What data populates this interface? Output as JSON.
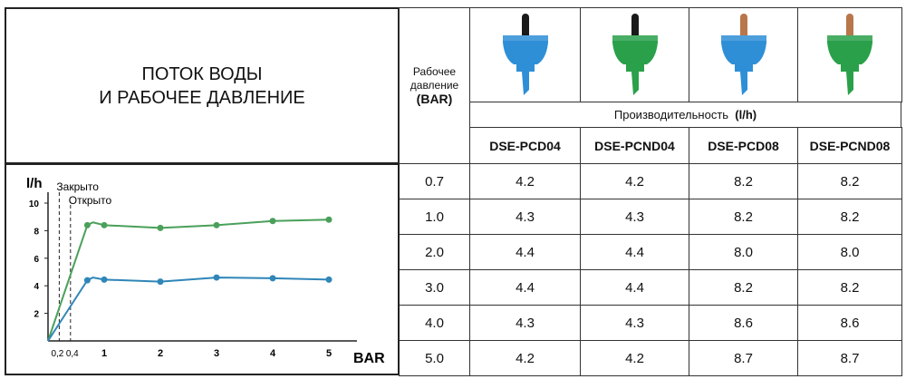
{
  "title_lines": [
    "ПОТОК ВОДЫ",
    "И РАБОЧЕЕ ДАВЛЕНИЕ"
  ],
  "pressure_header": {
    "line1": "Рабочее",
    "line2": "давление",
    "unit": "(BAR)"
  },
  "productivity_label": "Производительность",
  "productivity_unit": "(l/h)",
  "models": [
    {
      "name": "DSE-PCD04",
      "body_color": "#2e8fd6",
      "stem_color": "#1a1a1a"
    },
    {
      "name": "DSE-PCND04",
      "body_color": "#2aa04a",
      "stem_color": "#1a1a1a"
    },
    {
      "name": "DSE-PCD08",
      "body_color": "#2e8fd6",
      "stem_color": "#b8764a"
    },
    {
      "name": "DSE-PCND08",
      "body_color": "#2aa04a",
      "stem_color": "#b8764a"
    }
  ],
  "rows": [
    {
      "pressure": "0.7",
      "values": [
        "4.2",
        "4.2",
        "8.2",
        "8.2"
      ]
    },
    {
      "pressure": "1.0",
      "values": [
        "4.3",
        "4.3",
        "8.2",
        "8.2"
      ]
    },
    {
      "pressure": "2.0",
      "values": [
        "4.4",
        "4.4",
        "8.0",
        "8.0"
      ]
    },
    {
      "pressure": "3.0",
      "values": [
        "4.4",
        "4.4",
        "8.2",
        "8.2"
      ]
    },
    {
      "pressure": "4.0",
      "values": [
        "4.3",
        "4.3",
        "8.6",
        "8.6"
      ]
    },
    {
      "pressure": "5.0",
      "values": [
        "4.2",
        "4.2",
        "8.7",
        "8.7"
      ]
    }
  ],
  "chart_data": {
    "type": "line",
    "ylabel": "l/h",
    "xlabel": "BAR",
    "xlim": [
      0,
      5.5
    ],
    "ylim": [
      0,
      10.5
    ],
    "xticks": [
      "0,2",
      "0,4",
      "1",
      "2",
      "3",
      "4",
      "5"
    ],
    "yticks": [
      "2",
      "4",
      "6",
      "8",
      "10"
    ],
    "annotations": [
      {
        "text": "Закрыто",
        "x": 0.2
      },
      {
        "text": "Открыто",
        "x": 0.4
      }
    ],
    "series": [
      {
        "color": "#4aa05a",
        "line": [
          [
            0,
            0
          ],
          [
            0.7,
            8.4
          ],
          [
            0.8,
            8.6
          ],
          [
            1,
            8.4
          ],
          [
            2,
            8.2
          ],
          [
            3,
            8.4
          ],
          [
            4,
            8.7
          ],
          [
            5,
            8.8
          ]
        ],
        "points": [
          [
            0.7,
            8.4
          ],
          [
            1,
            8.4
          ],
          [
            2,
            8.2
          ],
          [
            3,
            8.4
          ],
          [
            4,
            8.7
          ],
          [
            5,
            8.8
          ]
        ]
      },
      {
        "color": "#2f86b8",
        "line": [
          [
            0,
            0
          ],
          [
            0.7,
            4.4
          ],
          [
            0.8,
            4.6
          ],
          [
            1,
            4.45
          ],
          [
            2,
            4.3
          ],
          [
            3,
            4.6
          ],
          [
            4,
            4.55
          ],
          [
            5,
            4.45
          ]
        ],
        "points": [
          [
            0.7,
            4.4
          ],
          [
            1,
            4.45
          ],
          [
            2,
            4.3
          ],
          [
            3,
            4.6
          ],
          [
            4,
            4.55
          ],
          [
            5,
            4.45
          ]
        ]
      }
    ]
  }
}
